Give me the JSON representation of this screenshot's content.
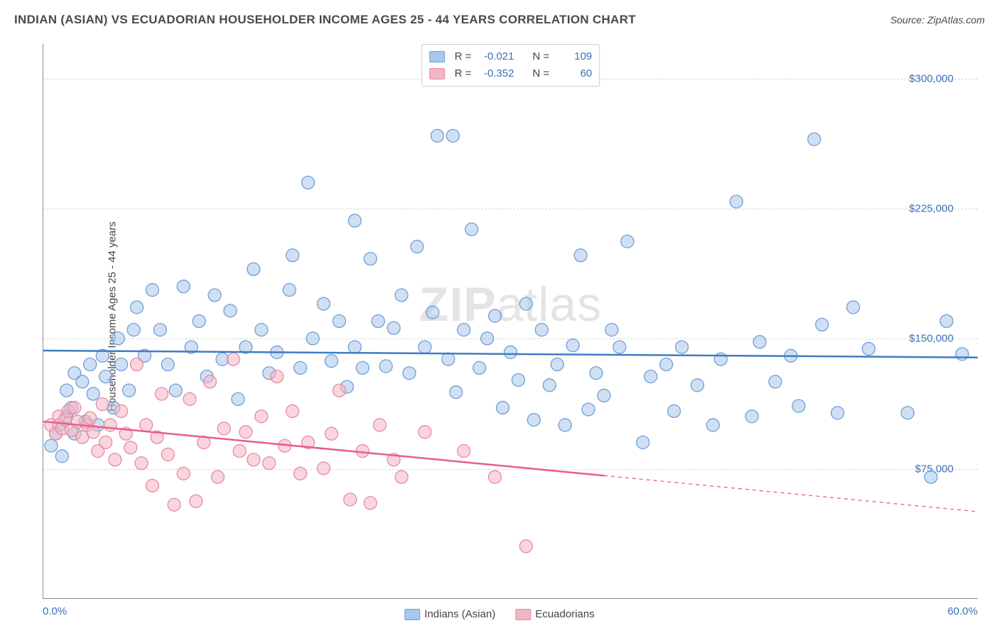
{
  "header": {
    "title": "INDIAN (ASIAN) VS ECUADORIAN HOUSEHOLDER INCOME AGES 25 - 44 YEARS CORRELATION CHART",
    "source": "Source: ZipAtlas.com"
  },
  "chart": {
    "type": "scatter",
    "ylabel": "Householder Income Ages 25 - 44 years",
    "xlim": [
      0,
      60
    ],
    "ylim": [
      0,
      320000
    ],
    "x_tick_labels": [
      "0.0%",
      "60.0%"
    ],
    "y_ticks": [
      75000,
      150000,
      225000,
      300000
    ],
    "y_tick_labels": [
      "$75,000",
      "$150,000",
      "$225,000",
      "$300,000"
    ],
    "grid_color": "#d8d8d8",
    "axis_color": "#888888",
    "tick_label_color": "#3b6fb6",
    "background_color": "#ffffff",
    "watermark": "ZIPatlas",
    "series": [
      {
        "name": "Indians (Asian)",
        "fill": "#a9c7ea",
        "stroke": "#6f9fd8",
        "fill_opacity": 0.55,
        "marker_radius": 9,
        "regression": {
          "y_start": 143000,
          "y_end": 139000,
          "dash_from_x": 60,
          "color": "#3f7cc4",
          "width": 2.5
        },
        "stats": {
          "R_label": "R =",
          "R": "-0.021",
          "N_label": "N =",
          "N": "109"
        },
        "points": [
          [
            0.5,
            88000
          ],
          [
            0.8,
            95000
          ],
          [
            1,
            100000
          ],
          [
            1.2,
            82000
          ],
          [
            1.5,
            120000
          ],
          [
            1.5,
            105000
          ],
          [
            1.8,
            110000
          ],
          [
            2,
            130000
          ],
          [
            2,
            95000
          ],
          [
            2.5,
            125000
          ],
          [
            2.7,
            102000
          ],
          [
            3,
            135000
          ],
          [
            3.2,
            118000
          ],
          [
            3.5,
            100000
          ],
          [
            3.8,
            140000
          ],
          [
            4,
            128000
          ],
          [
            4.5,
            110000
          ],
          [
            4.8,
            150000
          ],
          [
            5,
            135000
          ],
          [
            5.5,
            120000
          ],
          [
            5.8,
            155000
          ],
          [
            6,
            168000
          ],
          [
            6.5,
            140000
          ],
          [
            7,
            178000
          ],
          [
            7.5,
            155000
          ],
          [
            8,
            135000
          ],
          [
            8.5,
            120000
          ],
          [
            9,
            180000
          ],
          [
            9.5,
            145000
          ],
          [
            10,
            160000
          ],
          [
            10.5,
            128000
          ],
          [
            11,
            175000
          ],
          [
            11.5,
            138000
          ],
          [
            12,
            166000
          ],
          [
            12.5,
            115000
          ],
          [
            13,
            145000
          ],
          [
            13.5,
            190000
          ],
          [
            14,
            155000
          ],
          [
            14.5,
            130000
          ],
          [
            15,
            142000
          ],
          [
            15.8,
            178000
          ],
          [
            16,
            198000
          ],
          [
            16.5,
            133000
          ],
          [
            17,
            240000
          ],
          [
            17.3,
            150000
          ],
          [
            18,
            170000
          ],
          [
            18.5,
            137000
          ],
          [
            19,
            160000
          ],
          [
            19.5,
            122000
          ],
          [
            20,
            218000
          ],
          [
            20,
            145000
          ],
          [
            20.5,
            133000
          ],
          [
            21,
            196000
          ],
          [
            21.5,
            160000
          ],
          [
            22,
            134000
          ],
          [
            22.5,
            156000
          ],
          [
            23,
            175000
          ],
          [
            23.5,
            130000
          ],
          [
            24,
            203000
          ],
          [
            24.5,
            145000
          ],
          [
            25,
            165000
          ],
          [
            25.3,
            267000
          ],
          [
            26,
            138000
          ],
          [
            26.3,
            267000
          ],
          [
            26.5,
            119000
          ],
          [
            27,
            155000
          ],
          [
            27.5,
            213000
          ],
          [
            28,
            133000
          ],
          [
            28.5,
            150000
          ],
          [
            29,
            163000
          ],
          [
            29.5,
            110000
          ],
          [
            30,
            142000
          ],
          [
            30.5,
            126000
          ],
          [
            31,
            170000
          ],
          [
            31.5,
            103000
          ],
          [
            32,
            155000
          ],
          [
            32.5,
            123000
          ],
          [
            33,
            135000
          ],
          [
            33.5,
            100000
          ],
          [
            34,
            146000
          ],
          [
            34.5,
            198000
          ],
          [
            35,
            109000
          ],
          [
            35.5,
            130000
          ],
          [
            36,
            117000
          ],
          [
            36.5,
            155000
          ],
          [
            37,
            145000
          ],
          [
            37.5,
            206000
          ],
          [
            38.5,
            90000
          ],
          [
            39,
            128000
          ],
          [
            40,
            135000
          ],
          [
            40.5,
            108000
          ],
          [
            41,
            145000
          ],
          [
            42,
            123000
          ],
          [
            43,
            100000
          ],
          [
            43.5,
            138000
          ],
          [
            44.5,
            229000
          ],
          [
            45.5,
            105000
          ],
          [
            46,
            148000
          ],
          [
            47,
            125000
          ],
          [
            48,
            140000
          ],
          [
            48.5,
            111000
          ],
          [
            49.5,
            265000
          ],
          [
            50,
            158000
          ],
          [
            51,
            107000
          ],
          [
            52,
            168000
          ],
          [
            53,
            144000
          ],
          [
            55.5,
            107000
          ],
          [
            57,
            70000
          ],
          [
            58,
            160000
          ],
          [
            59,
            141000
          ]
        ]
      },
      {
        "name": "Ecuadorians",
        "fill": "#f4b5c3",
        "stroke": "#e88aa0",
        "fill_opacity": 0.55,
        "marker_radius": 9,
        "regression": {
          "y_start": 102000,
          "y_end": 50000,
          "dash_from_x": 36,
          "color": "#e85d8a",
          "width": 2.5
        },
        "stats": {
          "R_label": "R =",
          "R": "-0.352",
          "N_label": "N =",
          "N": "60"
        },
        "points": [
          [
            0.5,
            100000
          ],
          [
            0.8,
            95000
          ],
          [
            1,
            105000
          ],
          [
            1.2,
            98000
          ],
          [
            1.4,
            103000
          ],
          [
            1.6,
            108000
          ],
          [
            1.8,
            97000
          ],
          [
            2,
            110000
          ],
          [
            2.2,
            102000
          ],
          [
            2.5,
            93000
          ],
          [
            2.8,
            100000
          ],
          [
            3,
            104000
          ],
          [
            3.2,
            96000
          ],
          [
            3.5,
            85000
          ],
          [
            3.8,
            112000
          ],
          [
            4,
            90000
          ],
          [
            4.3,
            100000
          ],
          [
            4.6,
            80000
          ],
          [
            5,
            108000
          ],
          [
            5.3,
            95000
          ],
          [
            5.6,
            87000
          ],
          [
            6,
            135000
          ],
          [
            6.3,
            78000
          ],
          [
            6.6,
            100000
          ],
          [
            7,
            65000
          ],
          [
            7.3,
            93000
          ],
          [
            7.6,
            118000
          ],
          [
            8,
            83000
          ],
          [
            8.4,
            54000
          ],
          [
            9,
            72000
          ],
          [
            9.4,
            115000
          ],
          [
            9.8,
            56000
          ],
          [
            10.3,
            90000
          ],
          [
            10.7,
            125000
          ],
          [
            11.2,
            70000
          ],
          [
            11.6,
            98000
          ],
          [
            12.2,
            138000
          ],
          [
            12.6,
            85000
          ],
          [
            13,
            96000
          ],
          [
            13.5,
            80000
          ],
          [
            14,
            105000
          ],
          [
            14.5,
            78000
          ],
          [
            15,
            128000
          ],
          [
            15.5,
            88000
          ],
          [
            16,
            108000
          ],
          [
            16.5,
            72000
          ],
          [
            17,
            90000
          ],
          [
            18,
            75000
          ],
          [
            18.5,
            95000
          ],
          [
            19,
            120000
          ],
          [
            19.7,
            57000
          ],
          [
            20.5,
            85000
          ],
          [
            21,
            55000
          ],
          [
            21.6,
            100000
          ],
          [
            22.5,
            80000
          ],
          [
            23,
            70000
          ],
          [
            24.5,
            96000
          ],
          [
            27,
            85000
          ],
          [
            29,
            70000
          ],
          [
            31,
            30000
          ]
        ]
      }
    ],
    "bottom_legend": [
      {
        "label": "Indians (Asian)",
        "fill": "#a9c7ea",
        "stroke": "#6f9fd8"
      },
      {
        "label": "Ecuadorians",
        "fill": "#f4b5c3",
        "stroke": "#e88aa0"
      }
    ]
  }
}
